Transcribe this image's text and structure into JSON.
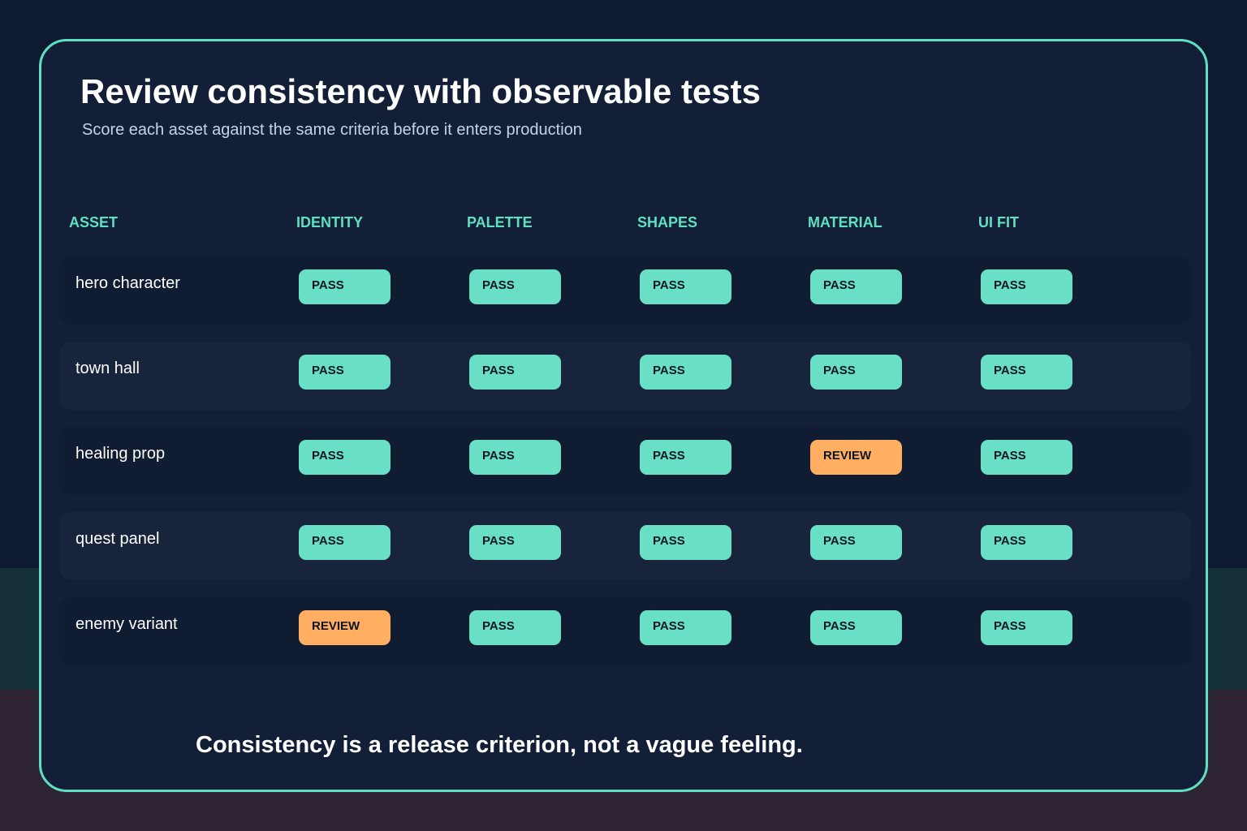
{
  "header": {
    "title": "Review consistency with observable tests",
    "subtitle": "Score each asset against the same criteria before it enters production"
  },
  "table": {
    "columns": [
      "ASSET",
      "IDENTITY",
      "PALETTE",
      "SHAPES",
      "MATERIAL",
      "UI FIT"
    ],
    "rows": [
      {
        "asset": "hero character",
        "results": [
          "PASS",
          "PASS",
          "PASS",
          "PASS",
          "PASS"
        ]
      },
      {
        "asset": "town hall",
        "results": [
          "PASS",
          "PASS",
          "PASS",
          "PASS",
          "PASS"
        ]
      },
      {
        "asset": "healing prop",
        "results": [
          "PASS",
          "PASS",
          "PASS",
          "REVIEW",
          "PASS"
        ]
      },
      {
        "asset": "quest panel",
        "results": [
          "PASS",
          "PASS",
          "PASS",
          "PASS",
          "PASS"
        ]
      },
      {
        "asset": "enemy variant",
        "results": [
          "REVIEW",
          "PASS",
          "PASS",
          "PASS",
          "PASS"
        ]
      }
    ]
  },
  "footer": {
    "note": "Consistency is a release criterion, not a vague feeling."
  },
  "colors": {
    "accent": "#5fe0c2",
    "pass": "#69e0c5",
    "review": "#ffae62",
    "card_background": "#121f36"
  }
}
